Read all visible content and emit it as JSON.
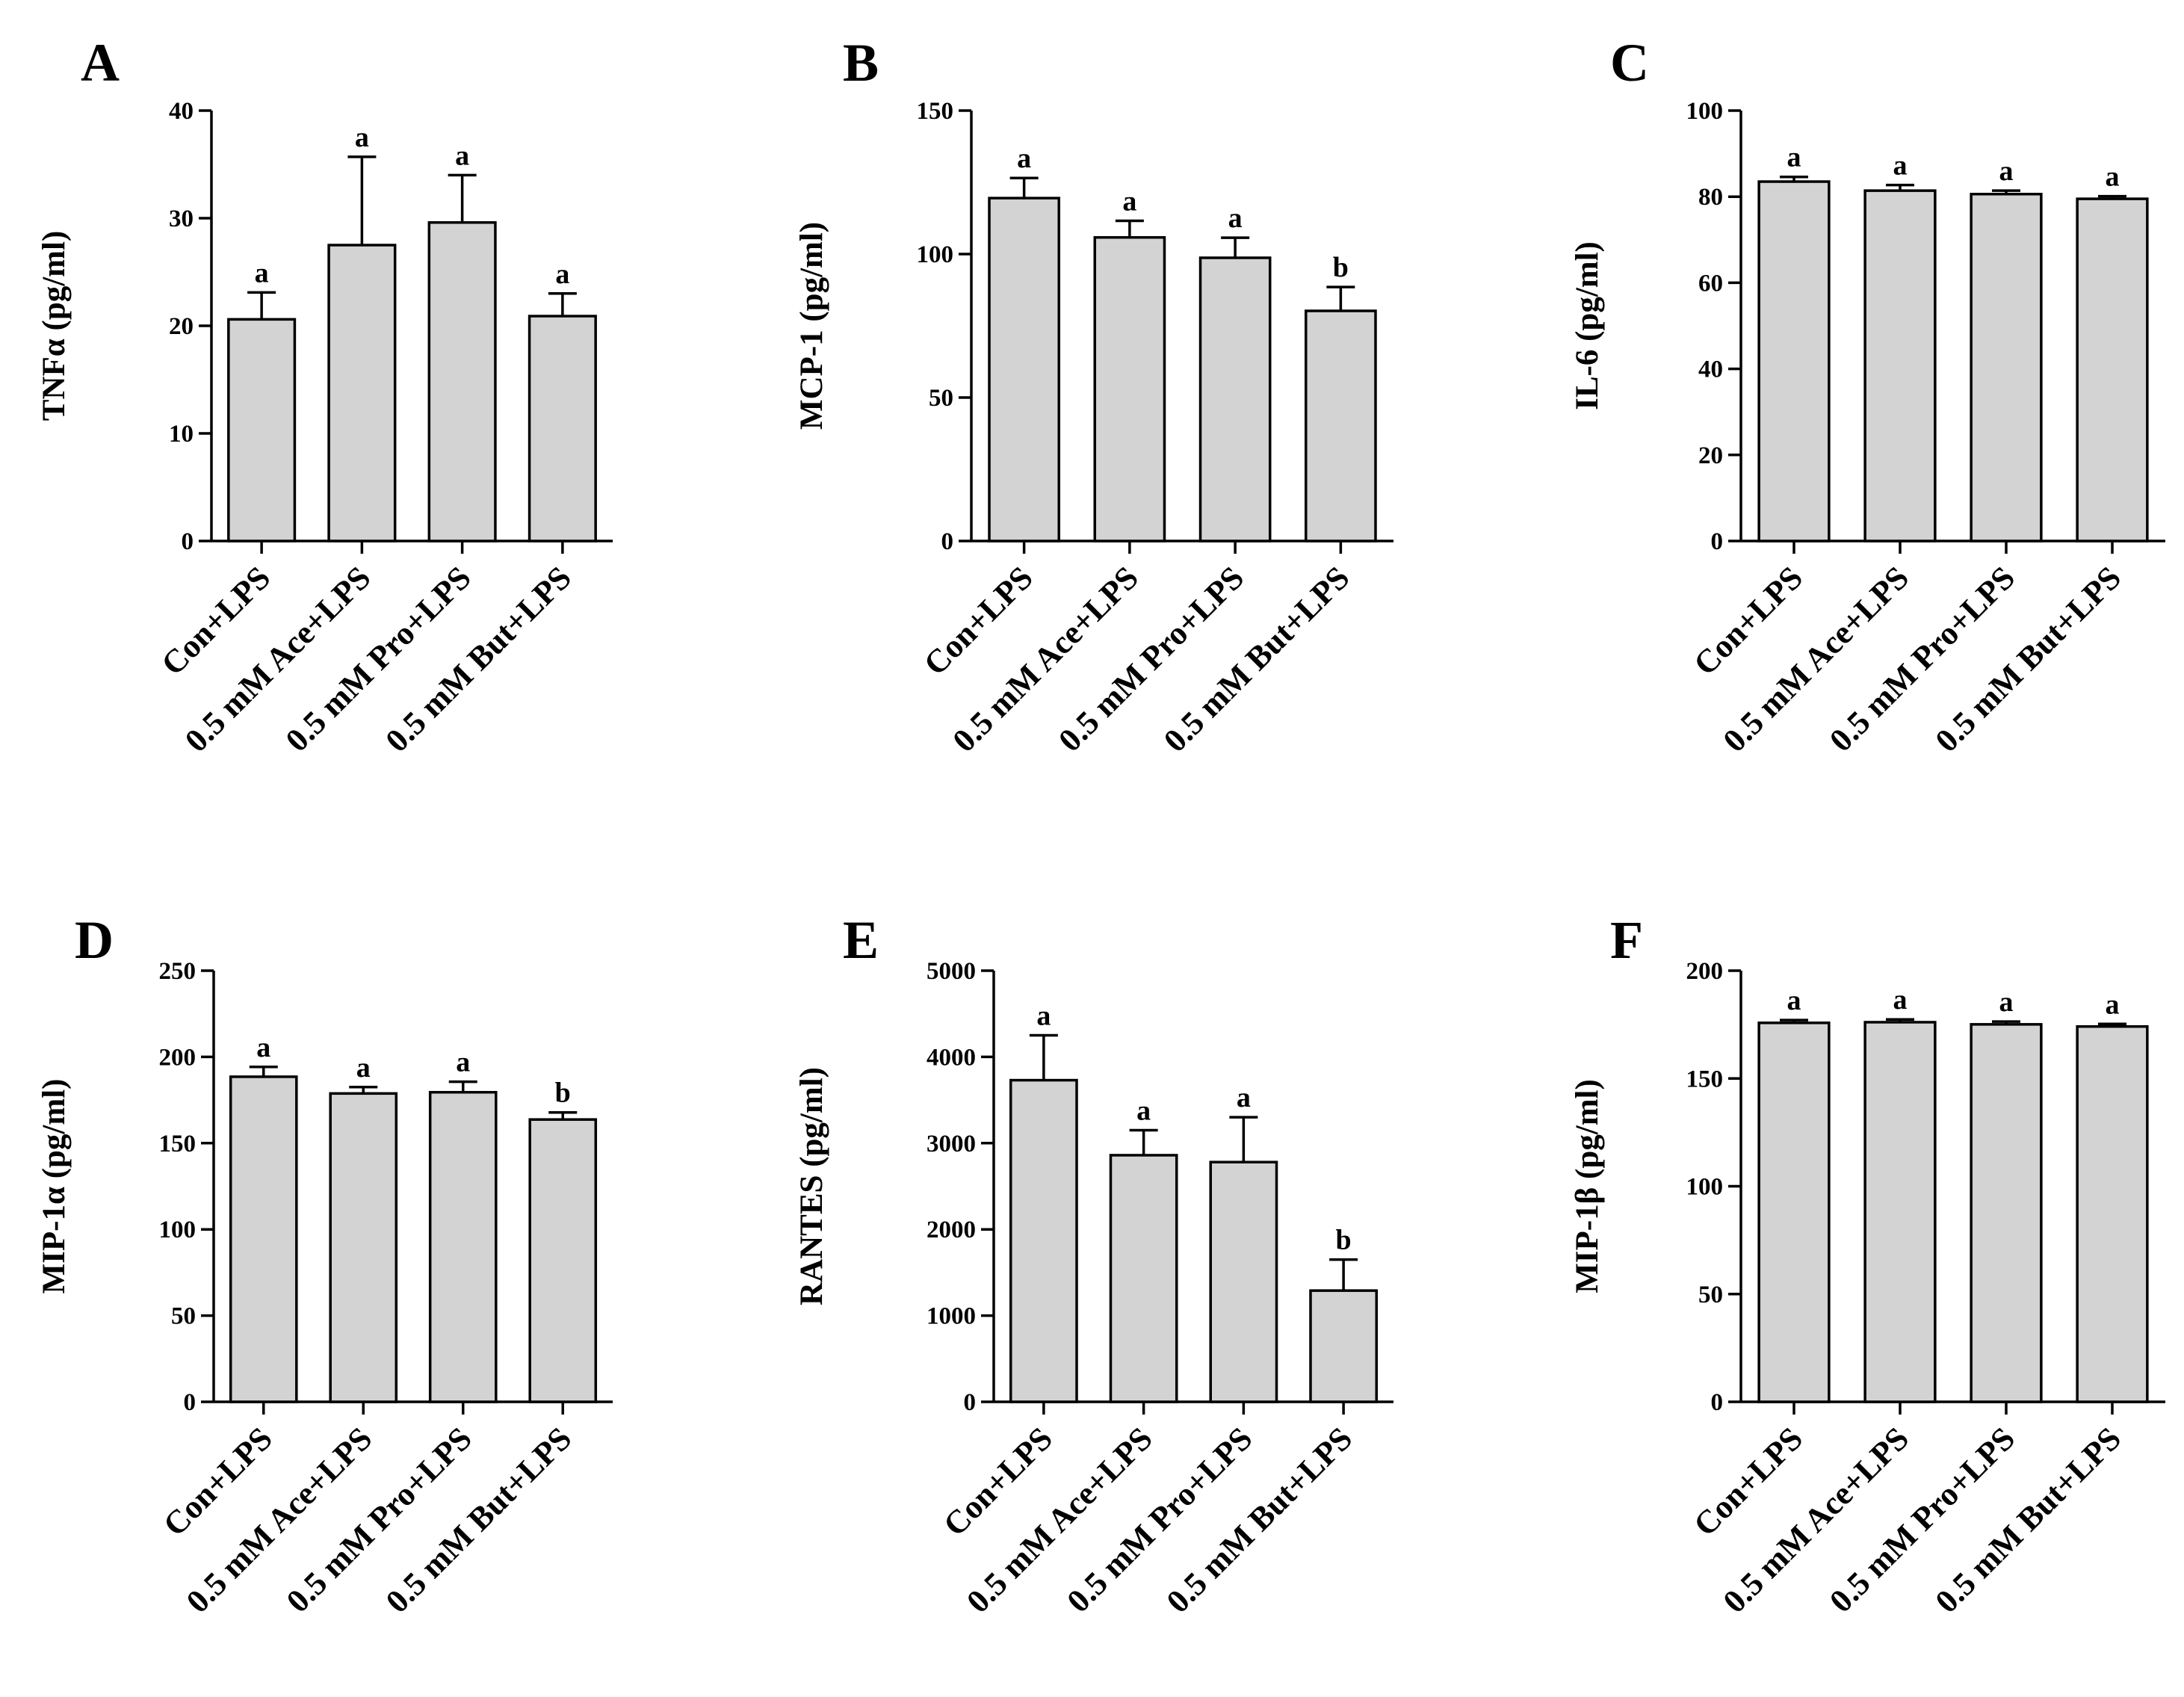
{
  "figure_title": "",
  "chart_data": [
    {
      "panel": "A",
      "type": "bar",
      "ylabel": "TNFα (pg/ml)",
      "categories": [
        "Con+LPS",
        "0.5 mM Ace+LPS",
        "0.5 mM Pro+LPS",
        "0.5 mM But+LPS"
      ],
      "values": [
        20.6,
        27.5,
        29.6,
        20.9
      ],
      "errors": [
        2.5,
        8.2,
        4.4,
        2.1
      ],
      "significance": [
        "a",
        "a",
        "a",
        "a"
      ],
      "ylim": [
        0,
        40
      ],
      "yticks": [
        0,
        10,
        20,
        30,
        40
      ],
      "ytick_labels": [
        "0",
        "10",
        "20",
        "30",
        "40"
      ]
    },
    {
      "panel": "B",
      "type": "bar",
      "ylabel": "MCP-1 (pg/ml)",
      "categories": [
        "Con+LPS",
        "0.5 mM Ace+LPS",
        "0.5 mM Pro+LPS",
        "0.5 mM But+LPS"
      ],
      "values": [
        119.5,
        105.8,
        98.7,
        80.2
      ],
      "errors": [
        7,
        5.8,
        7,
        8.3
      ],
      "significance": [
        "a",
        "a",
        "a",
        "b"
      ],
      "ylim": [
        0,
        150
      ],
      "yticks": [
        0,
        50,
        100,
        150
      ],
      "ytick_labels": [
        "0",
        "50",
        "100",
        "150"
      ]
    },
    {
      "panel": "C",
      "type": "bar",
      "ylabel": "IL-6 (pg/ml)",
      "categories": [
        "Con+LPS",
        "0.5 mM Ace+LPS",
        "0.5 mM Pro+LPS",
        "0.5 mM But+LPS"
      ],
      "values": [
        83.5,
        81.4,
        80.6,
        79.5
      ],
      "errors": [
        1.1,
        1.3,
        0.8,
        0.6
      ],
      "significance": [
        "a",
        "a",
        "a",
        "a"
      ],
      "ylim": [
        0,
        100
      ],
      "yticks": [
        0,
        20,
        40,
        60,
        80,
        100
      ],
      "ytick_labels": [
        "0",
        "20",
        "40",
        "60",
        "80",
        "100"
      ]
    },
    {
      "panel": "D",
      "type": "bar",
      "ylabel": "MIP-1α (pg/ml)",
      "categories": [
        "Con+LPS",
        "0.5 mM Ace+LPS",
        "0.5 mM Pro+LPS",
        "0.5 mM But+LPS"
      ],
      "values": [
        188.5,
        178.8,
        179.5,
        163.7
      ],
      "errors": [
        5.7,
        3.7,
        6.1,
        4.1
      ],
      "significance": [
        "a",
        "a",
        "a",
        "b"
      ],
      "ylim": [
        0,
        250
      ],
      "yticks": [
        0,
        50,
        100,
        150,
        200,
        250
      ],
      "ytick_labels": [
        "0",
        "50",
        "100",
        "150",
        "200",
        "250"
      ]
    },
    {
      "panel": "E",
      "type": "bar",
      "ylabel": "RANTES (pg/ml)",
      "categories": [
        "Con+LPS",
        "0.5 mM Ace+LPS",
        "0.5 mM Pro+LPS",
        "0.5 mM But+LPS"
      ],
      "values": [
        3730,
        2860,
        2780,
        1290
      ],
      "errors": [
        520,
        290,
        520,
        360
      ],
      "significance": [
        "a",
        "a",
        "a",
        "b"
      ],
      "ylim": [
        0,
        5000
      ],
      "yticks": [
        0,
        1000,
        2000,
        3000,
        4000,
        5000
      ],
      "ytick_labels": [
        "0",
        "1000",
        "2000",
        "3000",
        "4000",
        "5000"
      ]
    },
    {
      "panel": "F",
      "type": "bar",
      "ylabel": "MIP-1β (pg/ml)",
      "categories": [
        "Con+LPS",
        "0.5 mM Ace+LPS",
        "0.5 mM Pro+LPS",
        "0.5 mM But+LPS"
      ],
      "values": [
        175.8,
        176.1,
        175.1,
        174.1
      ],
      "errors": [
        1.3,
        1.3,
        1.3,
        1.2
      ],
      "significance": [
        "a",
        "a",
        "a",
        "a"
      ],
      "ylim": [
        0,
        200
      ],
      "yticks": [
        0,
        50,
        100,
        150,
        200
      ],
      "ytick_labels": [
        "0",
        "50",
        "100",
        "150",
        "200"
      ]
    }
  ]
}
